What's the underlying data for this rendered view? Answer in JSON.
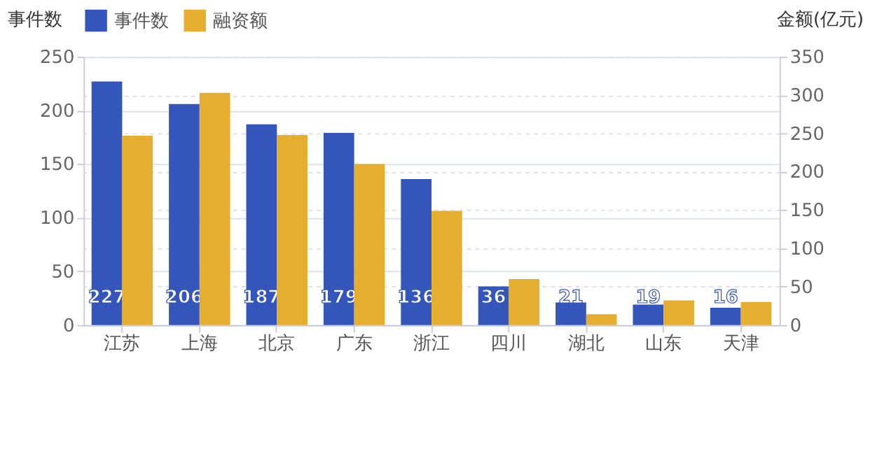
{
  "chart_data": {
    "type": "bar",
    "categories": [
      "江苏",
      "上海",
      "北京",
      "广东",
      "浙江",
      "四川",
      "湖北",
      "山东",
      "天津"
    ],
    "series": [
      {
        "name": "事件数",
        "color": "#3455b9",
        "values": [
          227,
          206,
          187,
          179,
          136,
          36,
          21,
          19,
          16
        ],
        "value_labels": [
          "227",
          "206",
          "187",
          "179",
          "136",
          "36",
          "21",
          "19",
          "16"
        ]
      },
      {
        "name": "融资额",
        "color": "#e5ae31",
        "axis": "y2",
        "values": [
          247,
          303,
          248,
          210,
          149,
          60,
          14,
          32,
          30
        ]
      }
    ],
    "ylabel": "事件数",
    "y2label": "金额(亿元)",
    "ylim": [
      0,
      250
    ],
    "yticks": [
      0,
      50,
      100,
      150,
      200,
      250
    ],
    "y2lim": [
      0,
      350
    ],
    "y2ticks": [
      0,
      50,
      100,
      150,
      200,
      250,
      300,
      350
    ],
    "grid": true,
    "legend": "top"
  }
}
